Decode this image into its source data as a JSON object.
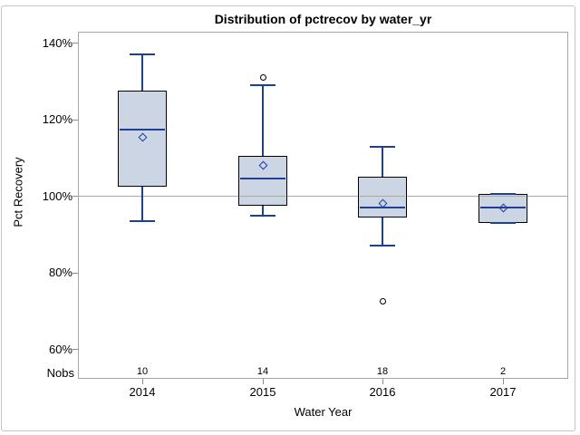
{
  "chart_data": {
    "type": "boxplot",
    "title": "Distribution of pctrecov by water_yr",
    "xlabel": "Water Year",
    "ylabel": "Pct Recovery",
    "nobs_label": "Nobs",
    "categories": [
      "2014",
      "2015",
      "2016",
      "2017"
    ],
    "y_ticks": [
      {
        "value": 140,
        "label": "140%"
      },
      {
        "value": 120,
        "label": "120%"
      },
      {
        "value": 100,
        "label": "100%"
      },
      {
        "value": 80,
        "label": "80%"
      },
      {
        "value": 60,
        "label": "60%"
      }
    ],
    "ylim": [
      52.3,
      143.0
    ],
    "reference_line": 100,
    "grid": "off",
    "legend": "none",
    "boxes": [
      {
        "category": "2014",
        "n": 10,
        "whisker_low": 93.5,
        "q1": 102.5,
        "median": 117.5,
        "mean": 115.5,
        "q3": 127.5,
        "whisker_high": 137,
        "outliers": []
      },
      {
        "category": "2015",
        "n": 14,
        "whisker_low": 95,
        "q1": 97.5,
        "median": 104.5,
        "mean": 108,
        "q3": 110.5,
        "whisker_high": 129,
        "outliers": [
          131
        ]
      },
      {
        "category": "2016",
        "n": 18,
        "whisker_low": 87,
        "q1": 94.5,
        "median": 97,
        "mean": 98,
        "q3": 105,
        "whisker_high": 113,
        "outliers": [
          72.5
        ]
      },
      {
        "category": "2017",
        "n": 2,
        "whisker_low": 93,
        "q1": 93,
        "median": 97,
        "mean": 97,
        "q3": 100.5,
        "whisker_high": 100.5,
        "outliers": []
      }
    ],
    "colors": {
      "background": "#ffffff",
      "figure_border": "#c6c6c6",
      "plot_border": "#a6a6a6",
      "box_fill": "#ccd5e3",
      "box_border": "#000000",
      "line_blue": "#1f3e96",
      "mean_marker": "#1f3e96",
      "outlier": "#000000",
      "reference_line": "#a8a8a8",
      "tick": "#8c8c8c",
      "text": "#000000"
    }
  }
}
